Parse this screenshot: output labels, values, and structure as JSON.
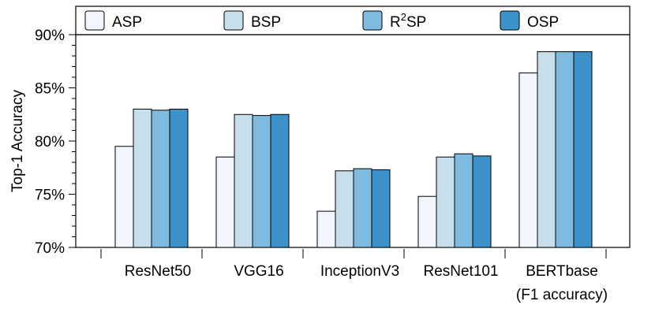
{
  "chart_data": {
    "type": "bar",
    "ylabel": "Top-1 Accuracy",
    "ylim": [
      70,
      90
    ],
    "yticks": [
      "70%",
      "75%",
      "80%",
      "85%",
      "90%"
    ],
    "categories": [
      {
        "label": "ResNet50"
      },
      {
        "label": "VGG16"
      },
      {
        "label": "InceptionV3"
      },
      {
        "label": "ResNet101"
      },
      {
        "label": "BERTbase",
        "sublabel": "(F1 accuracy)"
      }
    ],
    "series": [
      {
        "name": "ASP",
        "color": "#f2f6fc",
        "values": [
          79.5,
          78.5,
          73.4,
          74.8,
          86.4
        ]
      },
      {
        "name": "BSP",
        "color": "#c7dfea",
        "values": [
          83.0,
          82.5,
          77.2,
          78.5,
          88.4
        ]
      },
      {
        "name": "R2SP",
        "name_base": "R",
        "name_sup": "2",
        "name_rest": "SP",
        "color": "#7fbbdf",
        "values": [
          82.9,
          82.4,
          77.4,
          78.8,
          88.4
        ]
      },
      {
        "name": "OSP",
        "color": "#3b93c9",
        "values": [
          83.0,
          82.5,
          77.3,
          78.6,
          88.4
        ]
      }
    ],
    "legend_position": "top",
    "grid": false
  }
}
